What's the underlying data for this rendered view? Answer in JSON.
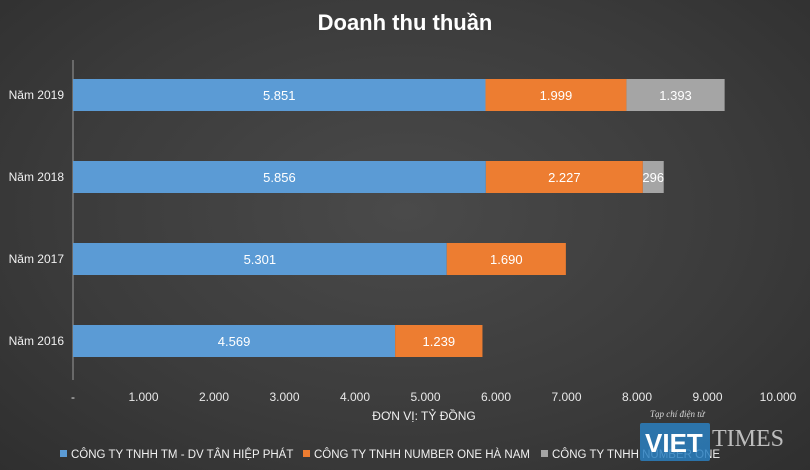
{
  "chart_data": {
    "type": "bar",
    "orientation": "horizontal",
    "stacked": true,
    "title": "Doanh thu thuần",
    "xlabel": "ĐƠN VỊ: TỶ ĐỒNG",
    "categories": [
      "Năm 2019",
      "Năm 2018",
      "Năm 2017",
      "Năm 2016"
    ],
    "series": [
      {
        "name": "CÔNG TY TNHH TM - DV TÂN HIỆP PHÁT",
        "color": "#5b9bd5",
        "values": [
          5851,
          5856,
          5301,
          4569
        ],
        "labels": [
          "5.851",
          "5.856",
          "5.301",
          "4.569"
        ]
      },
      {
        "name": "CÔNG TY TNHH NUMBER ONE HÀ NAM",
        "color": "#ed7d31",
        "values": [
          1999,
          2227,
          1690,
          1239
        ],
        "labels": [
          "1.999",
          "2.227",
          "1.690",
          "1.239"
        ]
      },
      {
        "name": "CÔNG TY TNHH NUMBER ONE",
        "color": "#a5a5a5",
        "values": [
          1393,
          296,
          null,
          null
        ],
        "labels": [
          "1.393",
          "296",
          "",
          ""
        ]
      }
    ],
    "xlim": [
      0,
      10000
    ],
    "xticks": [
      0,
      1000,
      2000,
      3000,
      4000,
      5000,
      6000,
      7000,
      8000,
      9000,
      10000
    ],
    "xtick_labels": [
      "-",
      "1.000",
      "2.000",
      "3.000",
      "4.000",
      "5.000",
      "6.000",
      "7.000",
      "8.000",
      "9.000",
      "10.000"
    ],
    "grid": false,
    "legend_position": "bottom"
  },
  "watermark": {
    "tagline": "Tạp chí điện tử",
    "brand_left": "VIET",
    "brand_right": "TIMES"
  }
}
